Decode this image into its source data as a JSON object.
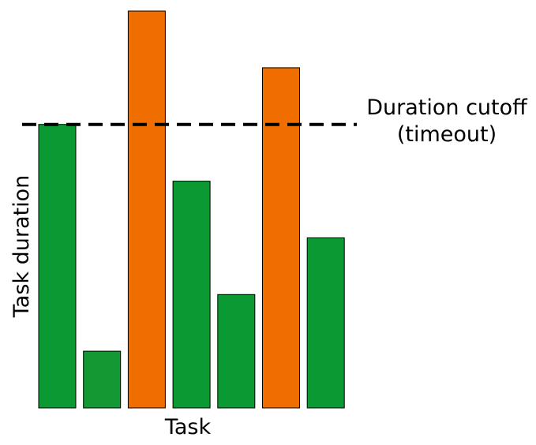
{
  "chart_data": {
    "type": "bar",
    "xlabel": "Task",
    "ylabel": "Task duration",
    "ylim": [
      0,
      7
    ],
    "values": [
      5,
      1,
      7,
      4,
      2,
      6,
      3
    ],
    "bar_colors": [
      "#0a9933",
      "#139933",
      "#f06d00",
      "#0a9933",
      "#0a9933",
      "#f06d00",
      "#0a9933"
    ],
    "cutoff": {
      "value": 5,
      "label_line1": "Duration cutoff",
      "label_line2": "(timeout)",
      "style": "dashed",
      "color": "#000000"
    },
    "grid": false,
    "colors": {
      "under_cutoff": "#0a9933",
      "over_cutoff": "#f06d00"
    }
  }
}
